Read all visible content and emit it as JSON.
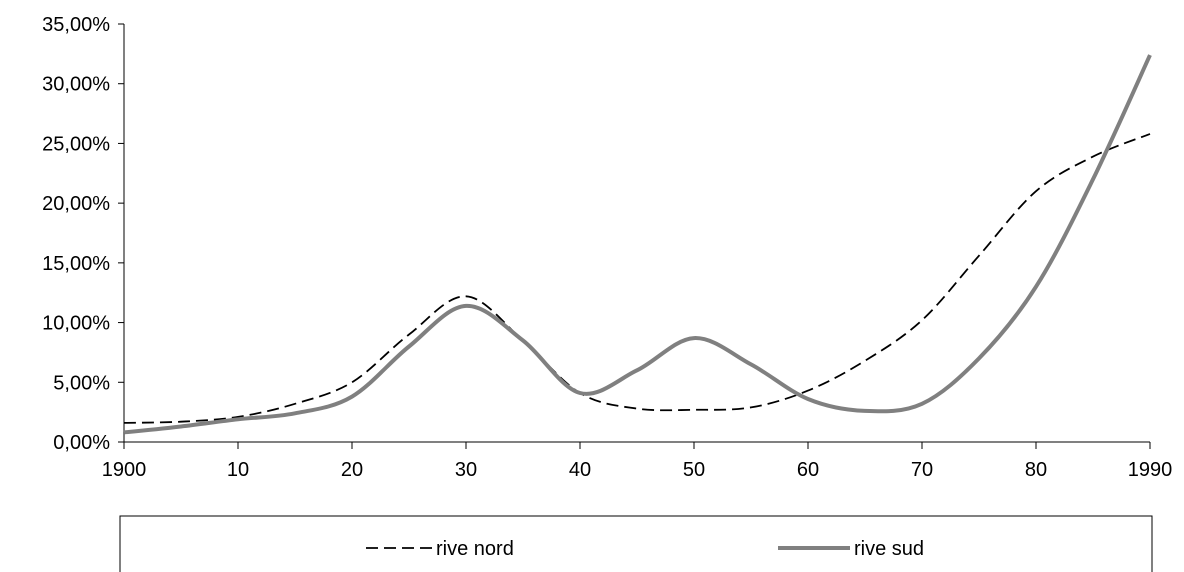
{
  "chart_data": {
    "type": "line",
    "title": "",
    "xlabel": "",
    "ylabel": "",
    "x_tick_labels": [
      "1900",
      "10",
      "20",
      "30",
      "40",
      "50",
      "60",
      "70",
      "80",
      "1990"
    ],
    "y_tick_labels": [
      "0,00%",
      "5,00%",
      "10,00%",
      "15,00%",
      "20,00%",
      "25,00%",
      "30,00%",
      "35,00%"
    ],
    "xlim": [
      1900,
      1990
    ],
    "ylim": [
      0,
      35
    ],
    "grid": false,
    "legend_position": "bottom",
    "series": [
      {
        "name": "rive nord",
        "color": "#000000",
        "line_style": "dashed",
        "x": [
          1900,
          1905,
          1910,
          1915,
          1920,
          1925,
          1930,
          1935,
          1940,
          1945,
          1950,
          1955,
          1960,
          1965,
          1970,
          1975,
          1980,
          1985,
          1990
        ],
        "y": [
          1.6,
          1.7,
          2.1,
          3.2,
          5.0,
          9.0,
          12.2,
          8.5,
          4.1,
          2.8,
          2.7,
          2.9,
          4.3,
          6.8,
          10.2,
          15.6,
          21.0,
          23.9,
          25.8
        ]
      },
      {
        "name": "rive sud",
        "color": "#808080",
        "line_style": "solid",
        "x": [
          1900,
          1905,
          1910,
          1915,
          1920,
          1925,
          1930,
          1935,
          1940,
          1945,
          1950,
          1955,
          1960,
          1965,
          1970,
          1975,
          1980,
          1985,
          1990
        ],
        "y": [
          0.8,
          1.3,
          1.9,
          2.4,
          3.8,
          8.0,
          11.4,
          8.5,
          4.1,
          6.0,
          8.7,
          6.5,
          3.6,
          2.6,
          3.2,
          7.0,
          13.0,
          22.0,
          32.4
        ]
      }
    ]
  }
}
